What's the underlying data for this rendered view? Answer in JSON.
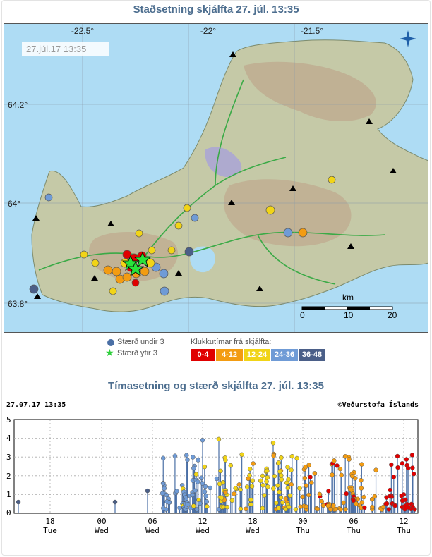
{
  "map_section": {
    "title": "Staðsetning skjálfta   27. júl. 13:35",
    "timestamp_label": "27.júl.17  13:35",
    "lon_labels": [
      "-22.5°",
      "-22°",
      "-21.5°"
    ],
    "lat_labels": [
      "64.2°",
      "64°",
      "63.8°"
    ],
    "scale": {
      "unit": "km",
      "ticks": [
        "0",
        "10",
        "20"
      ]
    }
  },
  "legend": {
    "size_small": "Stærð undir 3",
    "size_large": "Stærð yfir 3",
    "time_title": "Klukkutímar frá skjálfta:",
    "time_bins": [
      {
        "label": "0-4",
        "color": "#e00000"
      },
      {
        "label": "4-12",
        "color": "#f39c12"
      },
      {
        "label": "12-24",
        "color": "#f1d417"
      },
      {
        "label": "24-36",
        "color": "#6f9bd6"
      },
      {
        "label": "36-48",
        "color": "#4b5f88"
      }
    ]
  },
  "timeline_section": {
    "title": "Tímasetning og stærð skjálfta   27. júl. 13:35",
    "header_left": "27.07.17 13:35",
    "header_right": "©Veðurstofa Íslands",
    "y_ticks": [
      "5",
      "4",
      "3",
      "2",
      "1",
      "0"
    ],
    "x_ticks": [
      {
        "hour": "18",
        "day": "Tue"
      },
      {
        "hour": "00",
        "day": "Wed"
      },
      {
        "hour": "06",
        "day": "Wed"
      },
      {
        "hour": "12",
        "day": "Wed"
      },
      {
        "hour": "18",
        "day": "Wed"
      },
      {
        "hour": "00",
        "day": "Thu"
      },
      {
        "hour": "06",
        "day": "Thu"
      },
      {
        "hour": "12",
        "day": "Thu"
      }
    ]
  },
  "colors": {
    "title": "#4d6e8f",
    "sea": "#aedcf4",
    "land": "#c5c9a7",
    "mountain": "#bfae92",
    "ice": "#a9a4d6",
    "road": "#3aaa46"
  }
}
